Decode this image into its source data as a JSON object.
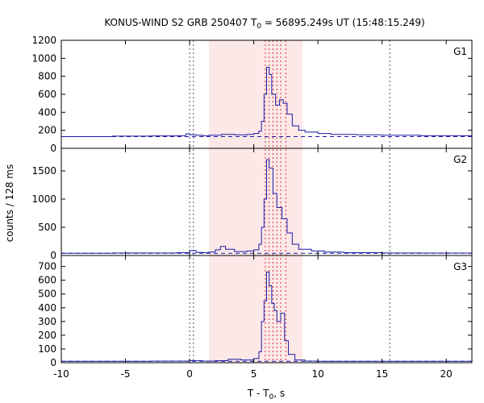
{
  "chart_data": {
    "type": "line",
    "title_main": "KONUS-WIND S2 GRB 250407 T",
    "title_sub": "0",
    "title_rest": " = 56895.249s UT (15:48:15.249)",
    "xlabel_main": "T - T",
    "xlabel_sub": "0",
    "xlabel_rest": ", s",
    "ylabel": "counts / 128 ms",
    "xlim": [
      -10,
      22
    ],
    "xticks": [
      -10,
      -5,
      0,
      5,
      10,
      15,
      20
    ],
    "colors": {
      "curve": "#1a1aa6",
      "background_line": "#1a1aa6",
      "shade": "#fde8e8",
      "vline": "#555555",
      "vline_red": "#cc3333"
    },
    "shaded_interval": [
      1.5,
      8.8
    ],
    "vlines": [
      0.0,
      0.3,
      15.6
    ],
    "vlines_red": [
      5.9,
      6.2,
      6.5,
      6.8,
      7.1,
      7.5
    ],
    "panels": [
      {
        "label": "G1",
        "ylim": [
          0,
          1200
        ],
        "yticks": [
          0,
          200,
          400,
          600,
          800,
          1000,
          1200
        ],
        "background": 130,
        "points": [
          [
            -10,
            130
          ],
          [
            -6,
            135
          ],
          [
            -3,
            138
          ],
          [
            -1,
            140
          ],
          [
            -0.3,
            160
          ],
          [
            0,
            150
          ],
          [
            0.5,
            145
          ],
          [
            1,
            140
          ],
          [
            1.5,
            145
          ],
          [
            2.5,
            155
          ],
          [
            3.5,
            150
          ],
          [
            4.5,
            155
          ],
          [
            5,
            165
          ],
          [
            5.4,
            190
          ],
          [
            5.6,
            300
          ],
          [
            5.8,
            600
          ],
          [
            6.0,
            900
          ],
          [
            6.2,
            820
          ],
          [
            6.4,
            600
          ],
          [
            6.7,
            480
          ],
          [
            7.0,
            540
          ],
          [
            7.3,
            500
          ],
          [
            7.6,
            380
          ],
          [
            8.0,
            250
          ],
          [
            8.5,
            200
          ],
          [
            9.0,
            180
          ],
          [
            10,
            165
          ],
          [
            11,
            155
          ],
          [
            13,
            150
          ],
          [
            15,
            145
          ],
          [
            18,
            140
          ],
          [
            22,
            135
          ]
        ]
      },
      {
        "label": "G2",
        "ylim": [
          0,
          1900
        ],
        "yticks": [
          0,
          500,
          1000,
          1500
        ],
        "background": 40,
        "points": [
          [
            -10,
            40
          ],
          [
            -6,
            45
          ],
          [
            -3,
            45
          ],
          [
            -1,
            50
          ],
          [
            0,
            90
          ],
          [
            0.5,
            55
          ],
          [
            1,
            50
          ],
          [
            1.5,
            60
          ],
          [
            2.0,
            100
          ],
          [
            2.4,
            160
          ],
          [
            2.8,
            110
          ],
          [
            3.5,
            70
          ],
          [
            4.5,
            80
          ],
          [
            5,
            100
          ],
          [
            5.4,
            200
          ],
          [
            5.6,
            500
          ],
          [
            5.8,
            1000
          ],
          [
            6.0,
            1700
          ],
          [
            6.2,
            1550
          ],
          [
            6.5,
            1100
          ],
          [
            6.8,
            850
          ],
          [
            7.2,
            650
          ],
          [
            7.6,
            400
          ],
          [
            8.0,
            200
          ],
          [
            8.5,
            110
          ],
          [
            9.5,
            80
          ],
          [
            10.5,
            60
          ],
          [
            12,
            50
          ],
          [
            15,
            45
          ],
          [
            18,
            42
          ],
          [
            22,
            40
          ]
        ]
      },
      {
        "label": "G3",
        "ylim": [
          0,
          780
        ],
        "yticks": [
          0,
          100,
          200,
          300,
          400,
          500,
          600,
          700
        ],
        "background": 10,
        "points": [
          [
            -10,
            10
          ],
          [
            -6,
            10
          ],
          [
            -3,
            12
          ],
          [
            -1,
            12
          ],
          [
            0,
            15
          ],
          [
            1,
            12
          ],
          [
            2,
            15
          ],
          [
            3,
            25
          ],
          [
            4,
            20
          ],
          [
            5,
            30
          ],
          [
            5.4,
            80
          ],
          [
            5.6,
            300
          ],
          [
            5.8,
            450
          ],
          [
            6.0,
            660
          ],
          [
            6.2,
            560
          ],
          [
            6.4,
            430
          ],
          [
            6.6,
            380
          ],
          [
            6.8,
            300
          ],
          [
            7.1,
            360
          ],
          [
            7.4,
            160
          ],
          [
            7.7,
            60
          ],
          [
            8.2,
            20
          ],
          [
            9,
            12
          ],
          [
            10,
            10
          ],
          [
            13,
            10
          ],
          [
            16,
            10
          ],
          [
            22,
            10
          ]
        ]
      }
    ]
  }
}
